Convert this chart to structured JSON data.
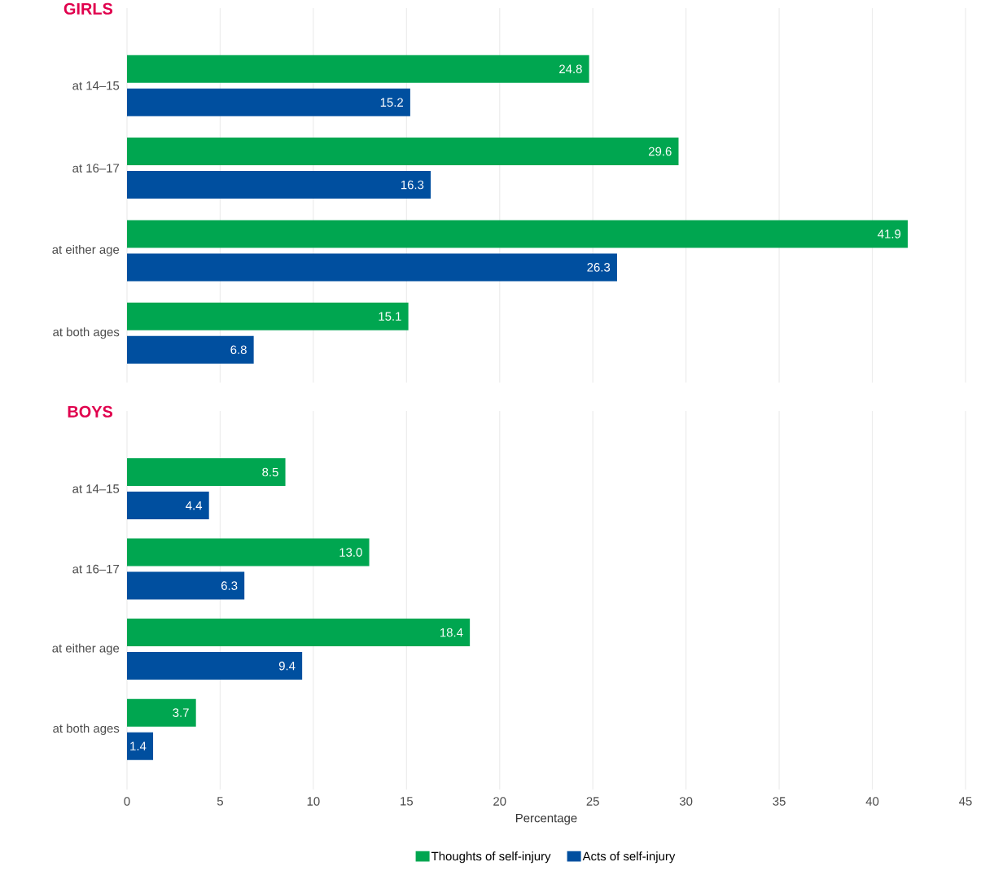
{
  "chart_data": [
    {
      "type": "bar",
      "orientation": "horizontal",
      "title": "GIRLS",
      "categories": [
        "at 14–15",
        "at 16–17",
        "at either age",
        "at both ages"
      ],
      "series": [
        {
          "color": "#00a650",
          "values": [
            24.8,
            29.6,
            41.9,
            15.1
          ],
          "value_labels": [
            "24.8",
            "29.6",
            "41.9",
            "15.1"
          ]
        },
        {
          "color": "#004f9f",
          "values": [
            15.2,
            16.3,
            26.3,
            6.8
          ],
          "value_labels": [
            "15.2",
            "16.3",
            "26.3",
            "6.8"
          ]
        }
      ],
      "xlim": [
        0,
        45
      ],
      "xticks": [
        0,
        5,
        10,
        15,
        20,
        25,
        30,
        35,
        40,
        45
      ],
      "grid": "x",
      "tick_labels": "y"
    },
    {
      "type": "bar",
      "orientation": "horizontal",
      "title": "BOYS",
      "xlabel": "Percentage",
      "categories": [
        "at 14–15",
        "at 16–17",
        "at either age",
        "at both ages"
      ],
      "series": [
        {
          "name": "Thoughts of self-injury",
          "color": "#00a650",
          "values": [
            8.5,
            13.0,
            18.4,
            3.7
          ],
          "value_labels": [
            "8.5",
            "13.0",
            "18.4",
            "3.7"
          ]
        },
        {
          "name": "Acts of self-injury",
          "color": "#004f9f",
          "values": [
            4.4,
            6.3,
            9.4,
            1.4
          ],
          "value_labels": [
            "4.4",
            "6.3",
            "9.4",
            "1.4"
          ]
        }
      ],
      "xlim": [
        0,
        45
      ],
      "xticks": [
        0,
        5,
        10,
        15,
        20,
        25,
        30,
        35,
        40,
        45
      ],
      "grid": "x",
      "legend": "bottom"
    }
  ]
}
